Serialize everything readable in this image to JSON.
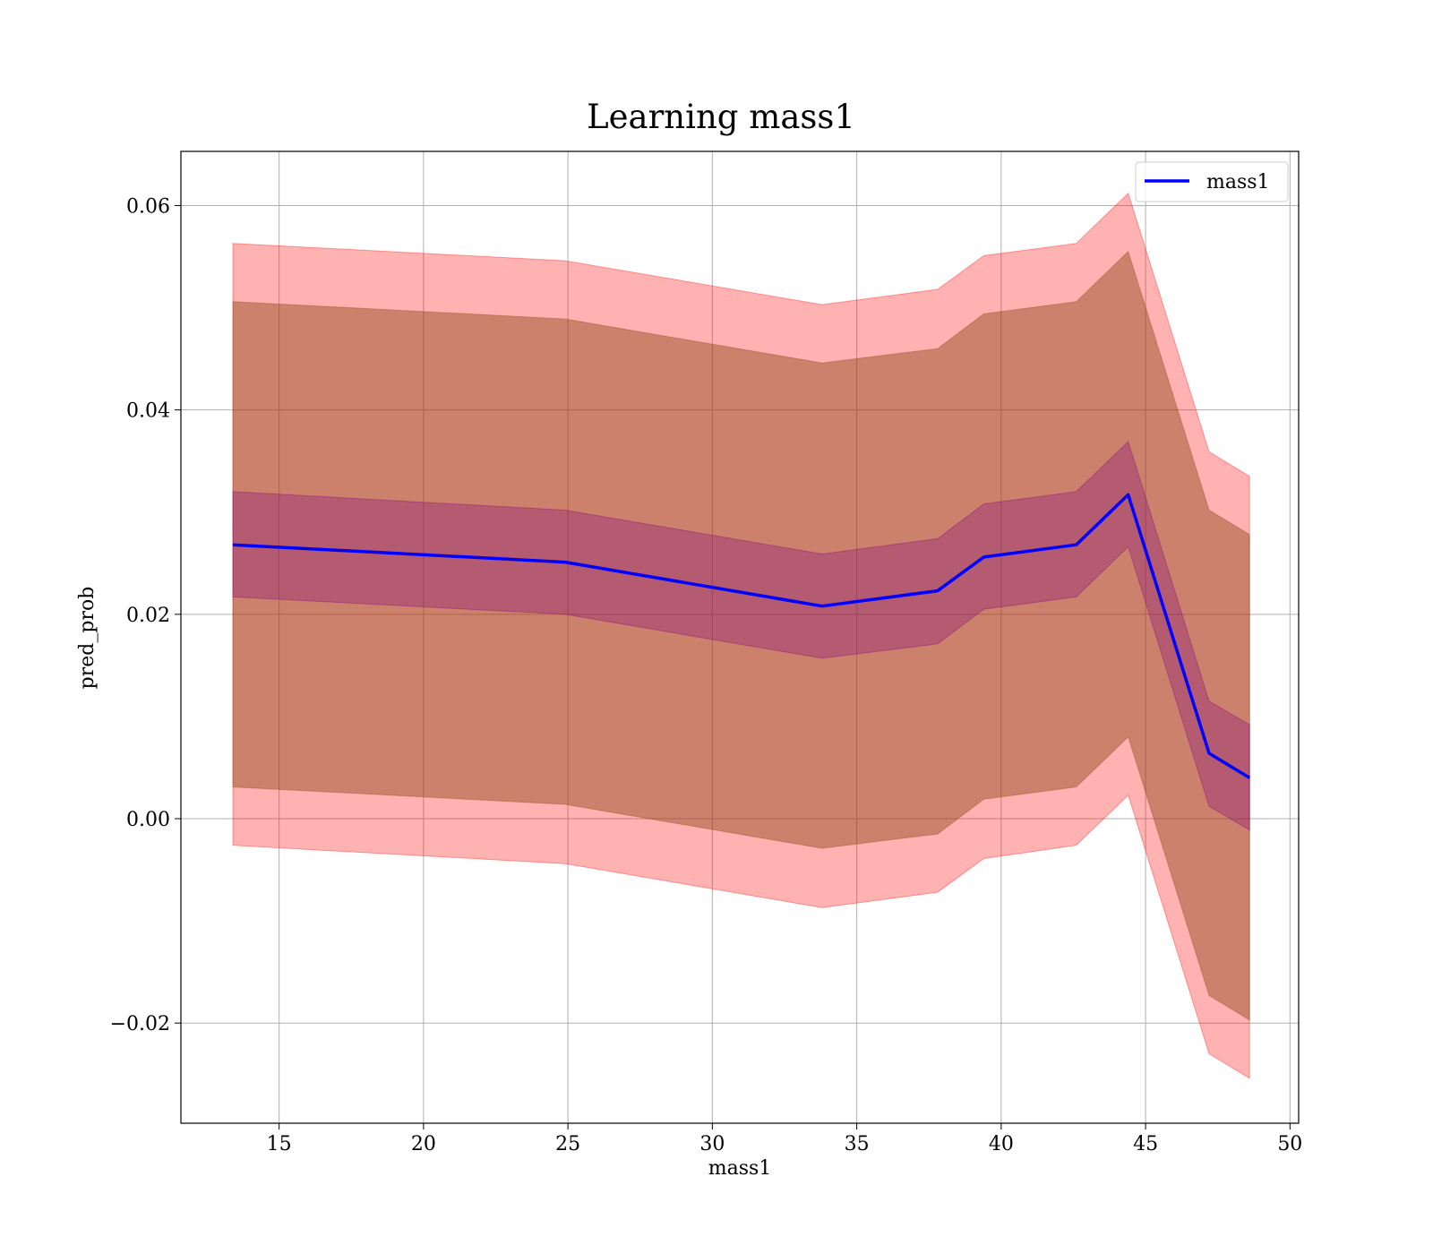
{
  "chart_data": {
    "type": "line",
    "title": "Learning mass1",
    "xlabel": "mass1",
    "ylabel": "pred_prob",
    "xlim": [
      11.6,
      50.3
    ],
    "ylim": [
      -0.0298,
      0.0653
    ],
    "xticks": [
      15,
      20,
      25,
      30,
      35,
      40,
      45,
      50
    ],
    "xtick_labels": [
      "15",
      "20",
      "25",
      "30",
      "35",
      "40",
      "45",
      "50"
    ],
    "yticks": [
      -0.02,
      0.0,
      0.02,
      0.04,
      0.06
    ],
    "ytick_labels": [
      "−0.02",
      "0.00",
      "0.02",
      "0.04",
      "0.06"
    ],
    "grid": true,
    "legend": {
      "position": "top-right",
      "entries": [
        "mass1"
      ]
    },
    "colors": {
      "line": "#0000ff",
      "outer_band": "#ff0000",
      "inner_band": "#8b4513",
      "core_band": "#800080",
      "grid": "#b0b0b0"
    },
    "series": [
      {
        "name": "mass1",
        "x": [
          13.4,
          24.9,
          33.8,
          37.8,
          39.4,
          42.6,
          44.4,
          47.2,
          48.6
        ],
        "y": [
          0.0268,
          0.0251,
          0.0208,
          0.0223,
          0.0256,
          0.0268,
          0.0317,
          0.0064,
          0.004
        ]
      }
    ],
    "bands": [
      {
        "level": "outer",
        "upper": [
          0.0563,
          0.0546,
          0.0503,
          0.0518,
          0.0551,
          0.0563,
          0.0612,
          0.0359,
          0.0335
        ],
        "lower": [
          -0.0026,
          -0.0044,
          -0.0087,
          -0.0072,
          -0.0039,
          -0.0026,
          0.0023,
          -0.023,
          -0.0254
        ]
      },
      {
        "level": "inner",
        "upper": [
          0.0506,
          0.0489,
          0.0446,
          0.046,
          0.0494,
          0.0506,
          0.0555,
          0.0302,
          0.0278
        ],
        "lower": [
          0.0031,
          0.0014,
          -0.0029,
          -0.0015,
          0.0019,
          0.0031,
          0.008,
          -0.0173,
          -0.0197
        ]
      },
      {
        "level": "core",
        "upper": [
          0.032,
          0.0302,
          0.0259,
          0.0274,
          0.0308,
          0.032,
          0.0369,
          0.0115,
          0.0092
        ],
        "lower": [
          0.0217,
          0.02,
          0.0157,
          0.0171,
          0.0205,
          0.0217,
          0.0266,
          0.0012,
          -0.0011
        ]
      }
    ]
  }
}
